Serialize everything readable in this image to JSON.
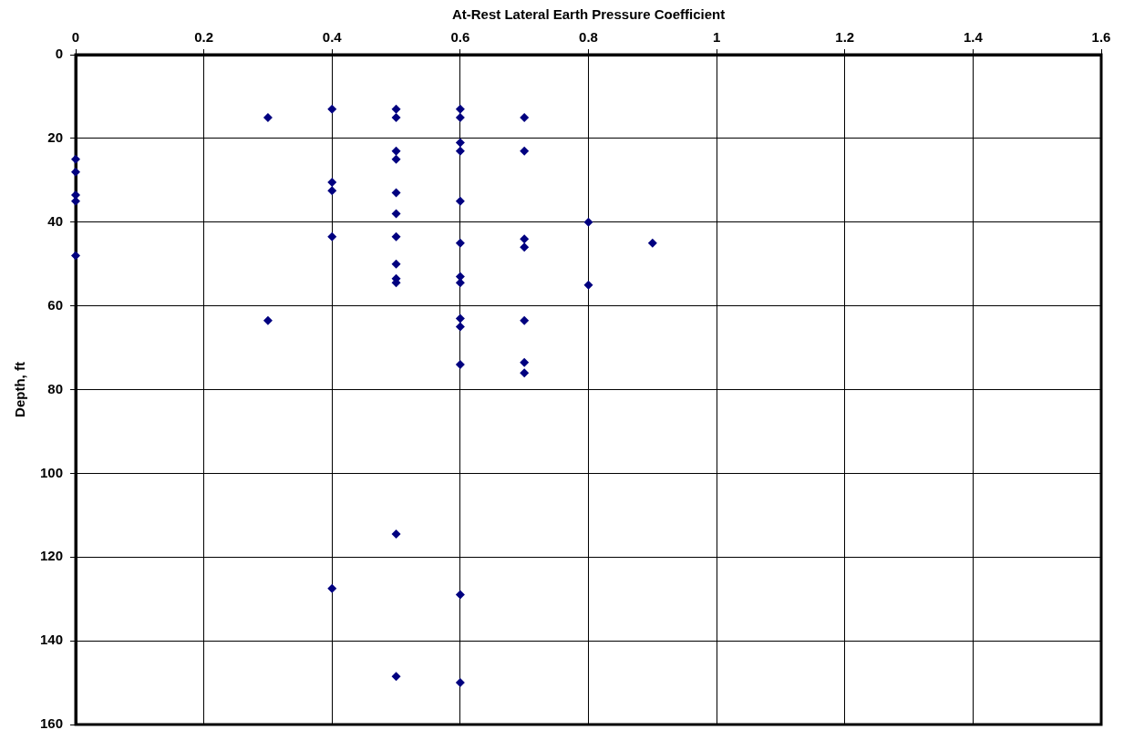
{
  "chart_data": {
    "type": "scatter",
    "xlabel": "At-Rest Lateral Earth Pressure Coefficient",
    "ylabel": "Depth, ft",
    "x": [
      0,
      0,
      0,
      0,
      0,
      0.3,
      0.3,
      0.4,
      0.4,
      0.4,
      0.4,
      0.4,
      0.5,
      0.5,
      0.5,
      0.5,
      0.5,
      0.5,
      0.5,
      0.5,
      0.5,
      0.5,
      0.5,
      0.5,
      0.6,
      0.6,
      0.6,
      0.6,
      0.6,
      0.6,
      0.6,
      0.6,
      0.6,
      0.6,
      0.6,
      0.6,
      0.6,
      0.7,
      0.7,
      0.7,
      0.7,
      0.7,
      0.7,
      0.7,
      0.8,
      0.8,
      0.9
    ],
    "values": [
      25,
      28,
      33.5,
      35,
      48,
      15,
      63.5,
      13,
      30.5,
      32.5,
      43.5,
      127.5,
      13,
      15,
      23,
      25,
      33,
      38,
      43.5,
      50,
      53.5,
      54.5,
      114.5,
      148.5,
      13,
      15,
      21,
      23,
      35,
      45,
      53,
      54.5,
      63,
      65,
      74,
      129,
      150,
      15,
      23,
      44,
      46,
      63.5,
      73.5,
      76,
      40,
      55,
      45
    ],
    "color": "#000080",
    "marker": "diamond",
    "grid": true,
    "xlim": [
      0,
      1.6
    ],
    "xticks": [
      0,
      0.2,
      0.4,
      0.6,
      0.8,
      1,
      1.2,
      1.4,
      1.6
    ],
    "ylim": [
      160,
      0
    ],
    "yticks": [
      0,
      20,
      40,
      60,
      80,
      100,
      120,
      140,
      160
    ]
  }
}
